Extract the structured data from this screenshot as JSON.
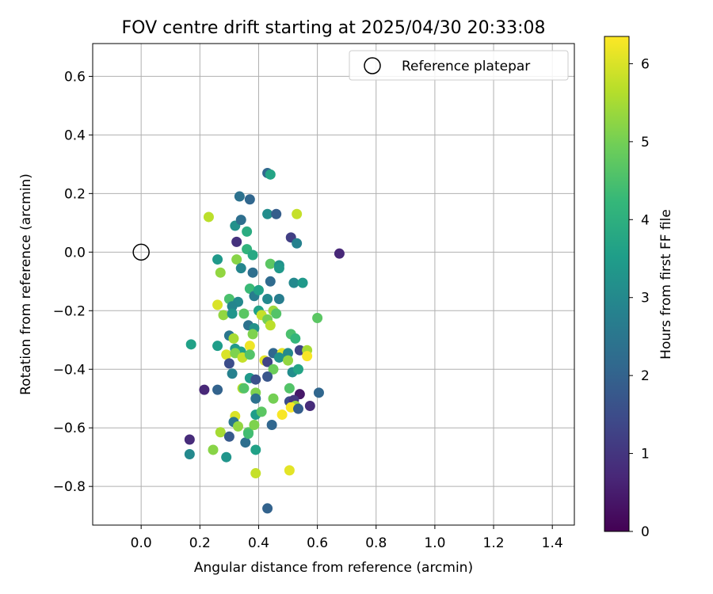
{
  "chart_data": {
    "type": "scatter",
    "title": "FOV centre drift starting at 2025/04/30 20:33:08",
    "xlabel": "Angular distance from reference (arcmin)",
    "ylabel": "Rotation from reference (arcmin)",
    "xlim": [
      -0.165,
      1.475
    ],
    "ylim": [
      -0.932,
      0.712
    ],
    "x_ticks": [
      0.0,
      0.2,
      0.4,
      0.6,
      0.8,
      1.0,
      1.2,
      1.4
    ],
    "x_tick_labels": [
      "0.0",
      "0.2",
      "0.4",
      "0.6",
      "0.8",
      "1.0",
      "1.2",
      "1.4"
    ],
    "y_ticks": [
      0.6,
      0.4,
      0.2,
      0.0,
      -0.2,
      -0.4,
      -0.6,
      -0.8
    ],
    "y_tick_labels": [
      "0.6",
      "0.4",
      "0.2",
      "0.0",
      "−0.2",
      "−0.4",
      "−0.6",
      "−0.8"
    ],
    "grid": true,
    "legend": {
      "position": "top-right",
      "entries": [
        {
          "label": "Reference platepar",
          "marker": "open-circle"
        }
      ]
    },
    "reference_point": {
      "x": 0.0,
      "y": 0.0
    },
    "colorbar": {
      "label": "Hours from first FF file",
      "colormap": "viridis",
      "range": [
        0,
        6.35
      ],
      "ticks": [
        0,
        1,
        2,
        3,
        4,
        5,
        6
      ],
      "tick_labels": [
        "0",
        "1",
        "2",
        "3",
        "4",
        "5",
        "6"
      ]
    },
    "series": [
      {
        "marker": "filled-circle",
        "points": [
          [
            0.23,
            0.12,
            5.7
          ],
          [
            0.53,
            0.13,
            5.8
          ],
          [
            0.43,
            0.27,
            2.1
          ],
          [
            0.44,
            0.265,
            3.7
          ],
          [
            0.335,
            0.19,
            2.4
          ],
          [
            0.37,
            0.18,
            2.1
          ],
          [
            0.43,
            0.13,
            3.1
          ],
          [
            0.46,
            0.13,
            1.9
          ],
          [
            0.32,
            0.09,
            3.2
          ],
          [
            0.34,
            0.11,
            2.3
          ],
          [
            0.36,
            0.07,
            3.9
          ],
          [
            0.51,
            0.05,
            1.2
          ],
          [
            0.53,
            0.03,
            2.8
          ],
          [
            0.325,
            0.035,
            0.9
          ],
          [
            0.675,
            -0.005,
            0.7
          ],
          [
            0.26,
            -0.025,
            3.4
          ],
          [
            0.36,
            0.01,
            4.1
          ],
          [
            0.325,
            -0.025,
            5.2
          ],
          [
            0.38,
            -0.01,
            3.8
          ],
          [
            0.27,
            -0.07,
            5.3
          ],
          [
            0.34,
            -0.055,
            2.9
          ],
          [
            0.38,
            -0.07,
            2.3
          ],
          [
            0.44,
            -0.04,
            4.7
          ],
          [
            0.47,
            -0.045,
            3.2
          ],
          [
            0.47,
            -0.055,
            3.4
          ],
          [
            0.44,
            -0.1,
            2.2
          ],
          [
            0.52,
            -0.105,
            3.0
          ],
          [
            0.55,
            -0.105,
            3.4
          ],
          [
            0.37,
            -0.125,
            4.3
          ],
          [
            0.385,
            -0.15,
            2.7
          ],
          [
            0.4,
            -0.13,
            3.6
          ],
          [
            0.43,
            -0.16,
            3.0
          ],
          [
            0.47,
            -0.16,
            2.7
          ],
          [
            0.3,
            -0.16,
            4.5
          ],
          [
            0.33,
            -0.17,
            3.0
          ],
          [
            0.31,
            -0.185,
            2.9
          ],
          [
            0.26,
            -0.18,
            6.0
          ],
          [
            0.28,
            -0.215,
            5.3
          ],
          [
            0.31,
            -0.21,
            3.3
          ],
          [
            0.35,
            -0.21,
            4.7
          ],
          [
            0.4,
            -0.2,
            3.6
          ],
          [
            0.41,
            -0.215,
            5.8
          ],
          [
            0.45,
            -0.2,
            5.4
          ],
          [
            0.46,
            -0.21,
            4.6
          ],
          [
            0.43,
            -0.23,
            5.0
          ],
          [
            0.365,
            -0.25,
            2.4
          ],
          [
            0.385,
            -0.26,
            3.2
          ],
          [
            0.44,
            -0.25,
            5.7
          ],
          [
            0.6,
            -0.225,
            4.7
          ],
          [
            0.3,
            -0.285,
            2.5
          ],
          [
            0.38,
            -0.28,
            5.1
          ],
          [
            0.51,
            -0.28,
            4.5
          ],
          [
            0.525,
            -0.295,
            4.2
          ],
          [
            0.17,
            -0.315,
            3.6
          ],
          [
            0.26,
            -0.32,
            3.5
          ],
          [
            0.315,
            -0.295,
            5.5
          ],
          [
            0.32,
            -0.33,
            3.4
          ],
          [
            0.34,
            -0.34,
            3.6
          ],
          [
            0.37,
            -0.32,
            6.2
          ],
          [
            0.29,
            -0.35,
            6.0
          ],
          [
            0.32,
            -0.345,
            5.1
          ],
          [
            0.345,
            -0.36,
            5.8
          ],
          [
            0.37,
            -0.35,
            4.6
          ],
          [
            0.45,
            -0.345,
            2.1
          ],
          [
            0.48,
            -0.345,
            6.1
          ],
          [
            0.5,
            -0.345,
            3.0
          ],
          [
            0.54,
            -0.335,
            1.3
          ],
          [
            0.565,
            -0.335,
            5.5
          ],
          [
            0.565,
            -0.355,
            6.3
          ],
          [
            0.3,
            -0.38,
            1.5
          ],
          [
            0.42,
            -0.37,
            6.1
          ],
          [
            0.43,
            -0.375,
            1.3
          ],
          [
            0.47,
            -0.36,
            3.2
          ],
          [
            0.5,
            -0.37,
            5.3
          ],
          [
            0.45,
            -0.4,
            4.9
          ],
          [
            0.515,
            -0.41,
            3.1
          ],
          [
            0.535,
            -0.4,
            3.7
          ],
          [
            0.31,
            -0.415,
            2.8
          ],
          [
            0.37,
            -0.43,
            3.4
          ],
          [
            0.39,
            -0.435,
            1.6
          ],
          [
            0.43,
            -0.425,
            1.7
          ],
          [
            0.215,
            -0.47,
            0.7
          ],
          [
            0.26,
            -0.47,
            2.0
          ],
          [
            0.345,
            -0.465,
            5.6
          ],
          [
            0.35,
            -0.465,
            4.6
          ],
          [
            0.39,
            -0.48,
            5.1
          ],
          [
            0.39,
            -0.5,
            2.4
          ],
          [
            0.45,
            -0.5,
            5.0
          ],
          [
            0.505,
            -0.465,
            4.6
          ],
          [
            0.54,
            -0.485,
            0.4
          ],
          [
            0.605,
            -0.48,
            2.1
          ],
          [
            0.505,
            -0.51,
            1.5
          ],
          [
            0.52,
            -0.505,
            1.0
          ],
          [
            0.525,
            -0.525,
            5.4
          ],
          [
            0.51,
            -0.53,
            6.3
          ],
          [
            0.535,
            -0.535,
            1.9
          ],
          [
            0.575,
            -0.525,
            0.8
          ],
          [
            0.32,
            -0.56,
            6.0
          ],
          [
            0.315,
            -0.58,
            2.5
          ],
          [
            0.39,
            -0.555,
            3.5
          ],
          [
            0.41,
            -0.545,
            4.7
          ],
          [
            0.48,
            -0.555,
            6.3
          ],
          [
            0.33,
            -0.595,
            5.3
          ],
          [
            0.365,
            -0.615,
            4.7
          ],
          [
            0.385,
            -0.59,
            5.1
          ],
          [
            0.445,
            -0.59,
            2.1
          ],
          [
            0.165,
            -0.64,
            0.8
          ],
          [
            0.27,
            -0.615,
            5.5
          ],
          [
            0.3,
            -0.63,
            1.8
          ],
          [
            0.355,
            -0.65,
            2.3
          ],
          [
            0.365,
            -0.62,
            4.4
          ],
          [
            0.165,
            -0.69,
            3.0
          ],
          [
            0.245,
            -0.675,
            5.2
          ],
          [
            0.29,
            -0.7,
            3.3
          ],
          [
            0.39,
            -0.675,
            3.6
          ],
          [
            0.39,
            -0.755,
            5.8
          ],
          [
            0.505,
            -0.745,
            6.1
          ],
          [
            0.43,
            -0.875,
            2.0
          ]
        ]
      }
    ]
  }
}
